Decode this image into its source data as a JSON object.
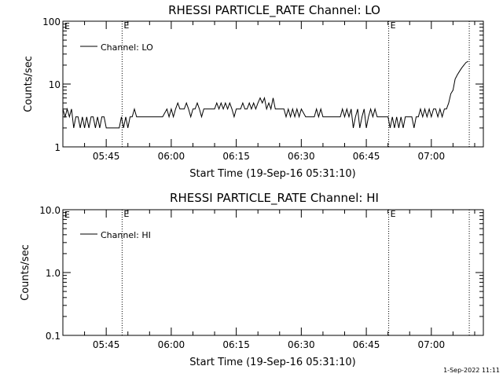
{
  "chart_data": [
    {
      "type": "line",
      "title": "RHESSI PARTICLE_RATE Channel: LO",
      "xlabel": "Start Time (19-Sep-16 05:31:10)",
      "ylabel": "Counts/sec",
      "yscale": "log",
      "ylim": [
        1,
        100
      ],
      "xlim": [
        "05:35:00",
        "07:12:00"
      ],
      "ytick_labels": [
        "1",
        "10",
        "100"
      ],
      "xtick_labels": [
        "05:45",
        "06:00",
        "06:15",
        "06:30",
        "06:45",
        "07:00"
      ],
      "marker_label": "E",
      "markers": [
        {
          "time": "05:48:40",
          "label": "E"
        },
        {
          "time": "06:50:10",
          "label": "E"
        },
        {
          "time": "07:08:45",
          "label": ""
        }
      ],
      "legend": {
        "placement": "top-left",
        "entries": [
          "Channel: LO"
        ]
      },
      "series": [
        {
          "name": "Channel: LO",
          "x": [
            "05:35:00",
            "05:35:30",
            "05:36:00",
            "05:36:30",
            "05:37:00",
            "05:37:30",
            "05:38:00",
            "05:38:30",
            "05:39:00",
            "05:39:30",
            "05:40:00",
            "05:40:30",
            "05:41:00",
            "05:41:30",
            "05:42:00",
            "05:42:30",
            "05:43:00",
            "05:43:30",
            "05:44:00",
            "05:44:30",
            "05:45:00",
            "05:46:00",
            "05:47:00",
            "05:48:00",
            "05:48:30",
            "05:49:00",
            "05:49:30",
            "05:50:00",
            "05:50:30",
            "05:51:00",
            "05:51:30",
            "05:52:00",
            "05:54:00",
            "05:56:00",
            "05:58:00",
            "05:59:00",
            "05:59:30",
            "06:00:00",
            "06:00:30",
            "06:01:00",
            "06:01:30",
            "06:02:00",
            "06:03:00",
            "06:03:30",
            "06:04:00",
            "06:04:30",
            "06:05:00",
            "06:05:30",
            "06:06:00",
            "06:06:30",
            "06:07:00",
            "06:07:30",
            "06:08:00",
            "06:09:00",
            "06:10:00",
            "06:10:30",
            "06:11:00",
            "06:11:30",
            "06:12:00",
            "06:12:30",
            "06:13:00",
            "06:13:30",
            "06:14:00",
            "06:14:30",
            "06:15:00",
            "06:16:00",
            "06:16:30",
            "06:17:00",
            "06:17:30",
            "06:18:00",
            "06:18:30",
            "06:19:00",
            "06:19:30",
            "06:20:00",
            "06:20:30",
            "06:21:00",
            "06:21:30",
            "06:22:00",
            "06:22:30",
            "06:23:00",
            "06:23:30",
            "06:24:00",
            "06:25:00",
            "06:26:00",
            "06:26:30",
            "06:27:00",
            "06:27:30",
            "06:28:00",
            "06:28:30",
            "06:29:00",
            "06:29:30",
            "06:30:00",
            "06:31:00",
            "06:32:00",
            "06:33:00",
            "06:33:30",
            "06:34:00",
            "06:34:30",
            "06:35:00",
            "06:36:00",
            "06:37:00",
            "06:38:00",
            "06:39:00",
            "06:39:30",
            "06:40:00",
            "06:40:30",
            "06:41:00",
            "06:41:30",
            "06:42:00",
            "06:42:30",
            "06:43:00",
            "06:43:30",
            "06:44:00",
            "06:44:30",
            "06:45:00",
            "06:45:30",
            "06:46:00",
            "06:46:30",
            "06:47:00",
            "06:47:30",
            "06:48:00",
            "06:49:00",
            "06:50:00",
            "06:50:30",
            "06:51:00",
            "06:51:30",
            "06:52:00",
            "06:52:30",
            "06:53:00",
            "06:53:30",
            "06:54:00",
            "06:55:00",
            "06:55:30",
            "06:56:00",
            "06:56:30",
            "06:57:00",
            "06:57:30",
            "06:58:00",
            "06:58:30",
            "06:59:00",
            "06:59:30",
            "07:00:00",
            "07:00:30",
            "07:01:00",
            "07:01:30",
            "07:02:00",
            "07:02:30",
            "07:03:00",
            "07:03:30",
            "07:04:00",
            "07:04:30",
            "07:05:00",
            "07:05:30",
            "07:06:00",
            "07:06:30",
            "07:07:00",
            "07:07:30",
            "07:08:00",
            "07:08:30"
          ],
          "values": [
            4,
            3,
            4,
            3,
            4,
            2,
            3,
            3,
            2,
            3,
            2,
            3,
            2,
            3,
            3,
            2,
            3,
            2,
            3,
            3,
            2,
            2,
            2,
            2,
            3,
            2,
            3,
            2,
            3,
            3,
            4,
            3,
            3,
            3,
            3,
            4,
            3,
            4,
            3,
            4,
            5,
            4,
            4,
            5,
            4,
            3,
            4,
            4,
            5,
            4,
            3,
            4,
            4,
            4,
            4,
            5,
            4,
            5,
            4,
            5,
            4,
            5,
            4,
            3,
            4,
            4,
            5,
            4,
            4,
            5,
            4,
            5,
            4,
            5,
            6,
            5,
            6,
            4,
            5,
            4,
            6,
            4,
            4,
            4,
            3,
            4,
            3,
            4,
            3,
            4,
            3,
            4,
            3,
            3,
            3,
            4,
            3,
            4,
            3,
            3,
            3,
            3,
            3,
            4,
            3,
            4,
            3,
            4,
            2,
            3,
            4,
            2,
            3,
            4,
            2,
            3,
            4,
            3,
            4,
            3,
            3,
            3,
            3,
            2,
            3,
            2,
            3,
            2,
            3,
            2,
            3,
            3,
            3,
            2,
            3,
            3,
            4,
            3,
            4,
            3,
            4,
            3,
            4,
            4,
            3,
            4,
            3,
            4,
            4,
            5,
            7,
            8,
            12,
            14,
            16,
            18,
            20,
            22,
            23
          ]
        }
      ]
    },
    {
      "type": "line",
      "title": "RHESSI PARTICLE_RATE Channel: HI",
      "xlabel": "Start Time (19-Sep-16 05:31:10)",
      "ylabel": "Counts/sec",
      "yscale": "log",
      "ylim": [
        0.1,
        10
      ],
      "xlim": [
        "05:35:00",
        "07:12:00"
      ],
      "ytick_labels": [
        "0.1",
        "1.0",
        "10.0"
      ],
      "xtick_labels": [
        "05:45",
        "06:00",
        "06:15",
        "06:30",
        "06:45",
        "07:00"
      ],
      "marker_label": "E",
      "markers": [
        {
          "time": "05:48:40",
          "label": "E"
        },
        {
          "time": "06:50:10",
          "label": "E"
        },
        {
          "time": "07:08:45",
          "label": ""
        }
      ],
      "legend": {
        "placement": "top-left",
        "entries": [
          "Channel: HI"
        ]
      },
      "series": [
        {
          "name": "Channel: HI",
          "x": [],
          "values": []
        }
      ]
    }
  ],
  "footer": {
    "timestamp": "1-Sep-2022 11:11"
  }
}
